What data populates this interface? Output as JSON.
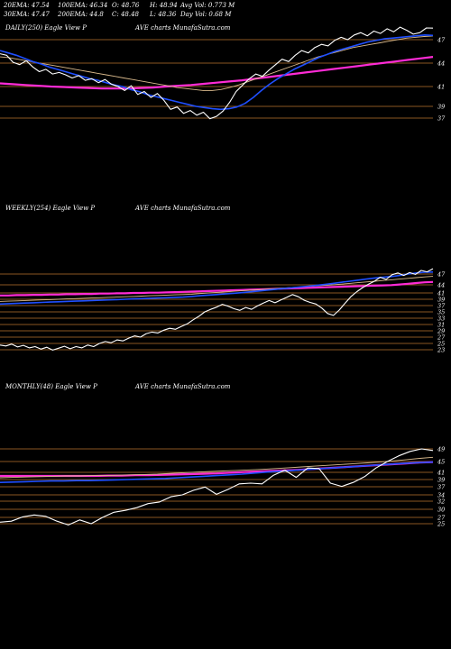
{
  "header": {
    "ema20": "20EMA: 47.54",
    "ema100": "100EMA: 46.34",
    "open": "O: 48.76",
    "high": "H: 48.94",
    "avgvol": "Avg Vol: 0.773 M",
    "ema30": "30EMA: 47.47",
    "ema200": "200EMA: 44.8",
    "close": "C: 48.48",
    "low": "L: 48.36",
    "dayvol": "Day Vol: 0.68 M"
  },
  "colors": {
    "background": "#000000",
    "price": "#ffffff",
    "ema_short": "#1f4fff",
    "ema_long": "#ff2bd6",
    "ema_mid": "#d9b98c",
    "grid": "#b8732e"
  },
  "chart_data": [
    {
      "type": "line",
      "panel_label_left": "DAILY(250) Eagle  View  P",
      "panel_label_right": "AVE charts MunafaSutra.com",
      "y_ticks": [
        "47",
        "44",
        "41",
        "39",
        "37"
      ],
      "price": [
        45.2,
        45.0,
        44.1,
        43.8,
        44.3,
        43.5,
        42.9,
        43.2,
        42.6,
        42.8,
        42.5,
        42.1,
        42.4,
        41.8,
        42.0,
        41.5,
        41.9,
        41.3,
        41.0,
        40.6,
        41.1,
        40.2,
        40.5,
        39.9,
        40.3,
        39.6,
        38.5,
        38.9,
        37.8,
        38.3,
        37.5,
        38.0,
        36.9,
        37.3,
        38.2,
        39.4,
        40.5,
        41.2,
        42.0,
        42.6,
        42.3,
        43.1,
        43.8,
        44.5,
        44.2,
        45.0,
        45.6,
        45.3,
        46.0,
        46.4,
        46.2,
        46.9,
        47.3,
        47.0,
        47.6,
        47.9,
        47.5,
        48.1,
        47.8,
        48.4,
        48.0,
        48.6,
        48.2,
        47.7,
        47.9,
        48.5,
        48.48
      ],
      "ema_blue": [
        45.6,
        45.3,
        45.0,
        44.6,
        44.2,
        43.9,
        43.5,
        43.2,
        42.9,
        42.6,
        42.3,
        42.0,
        41.8,
        41.5,
        41.2,
        41.0,
        40.7,
        40.5,
        40.2,
        40.0,
        39.8,
        39.6,
        39.4,
        39.2,
        39.0,
        38.8,
        38.6,
        38.5,
        38.6,
        38.9,
        39.3,
        39.9,
        40.6,
        41.3,
        42.0,
        42.6,
        43.2,
        43.7,
        44.2,
        44.7,
        45.1,
        45.5,
        45.8,
        46.1,
        46.4,
        46.7,
        46.9,
        47.1,
        47.2,
        47.3,
        47.4,
        47.5,
        47.6,
        47.54
      ],
      "ema_gold": [
        44.8,
        44.7,
        44.5,
        44.3,
        44.1,
        43.9,
        43.7,
        43.5,
        43.3,
        43.1,
        42.9,
        42.7,
        42.5,
        42.3,
        42.1,
        41.9,
        41.7,
        41.5,
        41.3,
        41.1,
        40.9,
        40.8,
        40.7,
        40.6,
        40.6,
        40.7,
        40.9,
        41.2,
        41.6,
        42.0,
        42.4,
        42.8,
        43.2,
        43.6,
        44.0,
        44.4,
        44.8,
        45.1,
        45.4,
        45.7,
        46.0,
        46.2,
        46.4,
        46.6,
        46.8,
        47.0,
        47.2,
        47.3,
        47.4,
        47.47
      ],
      "ema_pink": [
        41.4,
        41.3,
        41.2,
        41.1,
        41.0,
        40.95,
        40.9,
        40.85,
        40.8,
        40.8,
        40.8,
        40.85,
        40.9,
        41.0,
        41.1,
        41.2,
        41.35,
        41.5,
        41.65,
        41.8,
        42.0,
        42.2,
        42.4,
        42.6,
        42.8,
        43.0,
        43.2,
        43.4,
        43.6,
        43.8,
        44.0,
        44.2,
        44.4,
        44.6,
        44.8
      ]
    },
    {
      "type": "line",
      "panel_label_left": "WEEKLY(254) Eagle  View  P",
      "panel_label_right": "AVE charts MunafaSutra.com",
      "y_ticks": [
        "47",
        "44",
        "41",
        "39",
        "37",
        "35",
        "33",
        "31",
        "29",
        "27",
        "25",
        "23"
      ],
      "price": [
        24.5,
        24.2,
        24.8,
        23.9,
        24.4,
        23.6,
        24.0,
        23.2,
        23.8,
        22.9,
        23.5,
        24.1,
        23.3,
        24.0,
        23.6,
        24.5,
        24.0,
        25.0,
        25.6,
        25.2,
        26.1,
        25.8,
        26.7,
        27.4,
        27.0,
        28.1,
        28.6,
        28.3,
        29.2,
        29.8,
        29.5,
        30.4,
        31.2,
        32.5,
        33.6,
        35.0,
        35.8,
        36.5,
        37.4,
        36.8,
        36.0,
        35.5,
        36.4,
        35.8,
        36.9,
        37.8,
        38.6,
        37.9,
        38.8,
        39.6,
        40.5,
        39.8,
        38.7,
        38.0,
        37.5,
        36.2,
        34.5,
        33.9,
        35.6,
        37.8,
        39.9,
        41.5,
        43.0,
        44.2,
        45.0,
        46.1,
        45.5,
        46.8,
        47.3,
        46.6,
        47.4,
        46.9,
        48.0,
        47.6,
        48.48
      ],
      "ema_blue": [
        37.5,
        37.6,
        37.7,
        37.8,
        37.9,
        38.0,
        38.1,
        38.2,
        38.3,
        38.4,
        38.5,
        38.6,
        38.7,
        38.8,
        38.9,
        39.0,
        39.1,
        39.2,
        39.3,
        39.4,
        39.5,
        39.6,
        39.7,
        39.9,
        40.1,
        40.3,
        40.5,
        40.7,
        40.9,
        41.1,
        41.4,
        41.7,
        42.0,
        42.3,
        42.6,
        42.9,
        43.2,
        43.5,
        43.8,
        44.1,
        44.4,
        44.7,
        45.0,
        45.3,
        45.6,
        45.9,
        46.1,
        46.3,
        46.6,
        47.0,
        47.3,
        47.5,
        47.54
      ],
      "ema_gold": [
        38.3,
        38.4,
        38.5,
        38.6,
        38.7,
        38.8,
        38.9,
        39.0,
        39.1,
        39.2,
        39.3,
        39.4,
        39.5,
        39.6,
        39.7,
        39.8,
        39.9,
        40.0,
        40.1,
        40.2,
        40.3,
        40.4,
        40.5,
        40.6,
        40.8,
        41.0,
        41.2,
        41.4,
        41.6,
        41.8,
        42.0,
        42.2,
        42.4,
        42.6,
        42.8,
        43.0,
        43.2,
        43.4,
        43.6,
        43.8,
        44.0,
        44.2,
        44.4,
        44.6,
        44.8,
        45.0,
        45.2,
        45.4,
        45.6,
        45.8,
        46.0,
        46.2,
        46.34
      ],
      "ema_pink": [
        40.2,
        40.2,
        40.3,
        40.3,
        40.4,
        40.4,
        40.5,
        40.5,
        40.6,
        40.6,
        40.7,
        40.7,
        40.8,
        40.8,
        40.9,
        40.9,
        41.0,
        41.0,
        41.1,
        41.1,
        41.2,
        41.3,
        41.4,
        41.5,
        41.6,
        41.7,
        41.8,
        41.9,
        42.0,
        42.1,
        42.2,
        42.3,
        42.4,
        42.5,
        42.6,
        42.7,
        42.8,
        42.9,
        43.0,
        43.1,
        43.2,
        43.3,
        43.4,
        43.5,
        43.6,
        43.7,
        43.8,
        43.9,
        44.1,
        44.3,
        44.5,
        44.7,
        44.8
      ]
    },
    {
      "type": "line",
      "panel_label_left": "MONTHLY(48) Eagle  View  P",
      "panel_label_right": "AVE charts MunafaSutra.com",
      "y_ticks": [
        "49",
        "45",
        "41",
        "39",
        "37",
        "34",
        "32",
        "30",
        "27",
        "25"
      ],
      "price": [
        25.5,
        25.8,
        27.2,
        27.9,
        27.4,
        25.8,
        24.6,
        26.2,
        25.0,
        27.0,
        28.9,
        29.6,
        30.4,
        31.4,
        31.8,
        33.4,
        34.0,
        35.7,
        36.9,
        34.2,
        36.0,
        37.8,
        38.0,
        37.8,
        40.2,
        41.8,
        39.6,
        42.6,
        42.4,
        38.0,
        37.1,
        38.2,
        39.8,
        42.6,
        45.0,
        46.8,
        48.2,
        49.0,
        48.48
      ],
      "ema_blue": [
        38.2,
        38.3,
        38.4,
        38.5,
        38.6,
        38.6,
        38.7,
        38.7,
        38.8,
        38.9,
        39.0,
        39.1,
        39.2,
        39.3,
        39.5,
        39.7,
        39.9,
        40.1,
        40.3,
        40.5,
        40.8,
        41.1,
        41.4,
        41.7,
        42.0,
        42.3,
        42.6,
        42.9,
        43.2,
        43.5,
        43.8,
        44.1,
        44.4,
        44.6,
        44.8
      ],
      "ema_gold": [
        39.5,
        39.6,
        39.7,
        39.8,
        39.9,
        40.0,
        40.0,
        40.1,
        40.1,
        40.2,
        40.3,
        40.4,
        40.5,
        40.7,
        40.9,
        41.1,
        41.3,
        41.5,
        41.7,
        41.9,
        42.1,
        42.4,
        42.7,
        43.0,
        43.3,
        43.6,
        43.9,
        44.2,
        44.5,
        44.8,
        45.2,
        45.6,
        46.0,
        46.34
      ],
      "ema_pink": [
        40.0,
        40.0,
        40.0,
        40.0,
        40.0,
        40.0,
        40.0,
        40.0,
        40.1,
        40.1,
        40.2,
        40.2,
        40.3,
        40.4,
        40.5,
        40.6,
        40.7,
        40.9,
        41.1,
        41.3,
        41.5,
        41.7,
        41.9,
        42.2,
        42.5,
        42.8,
        43.1,
        43.4,
        43.7,
        44.0,
        44.3,
        44.6,
        44.8
      ]
    }
  ]
}
